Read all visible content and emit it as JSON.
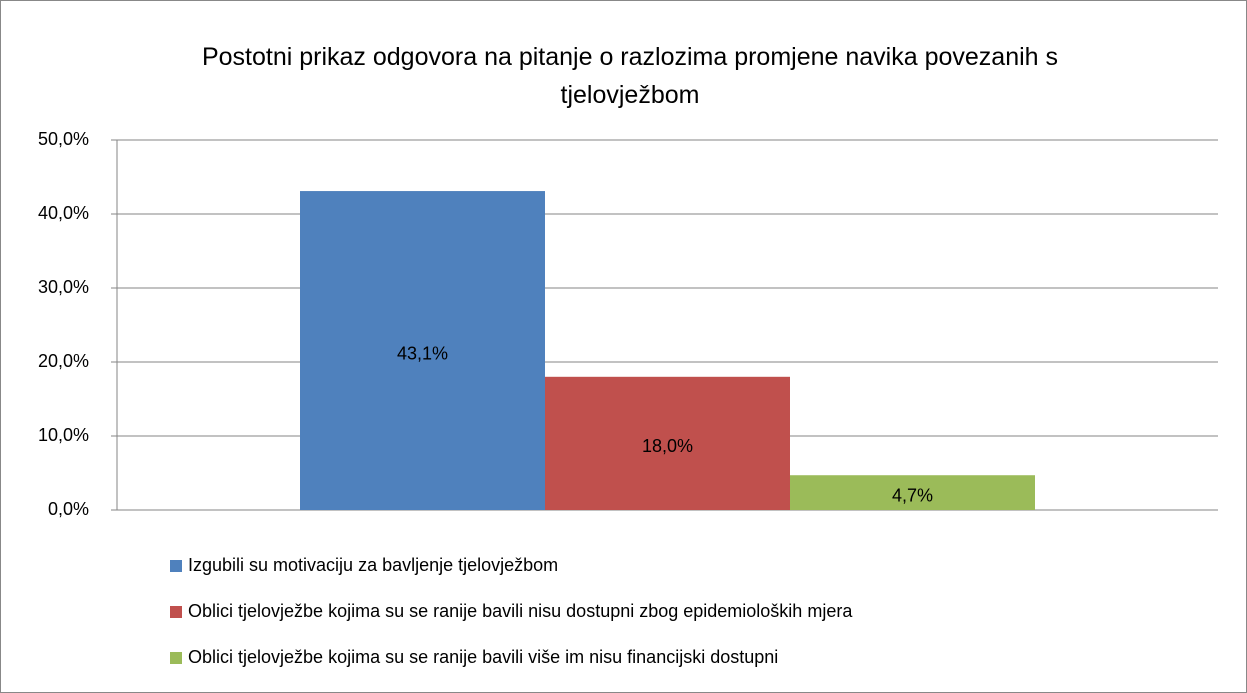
{
  "chart_data": {
    "type": "bar",
    "title": "Postotni prikaz odgovora na pitanje o razlozima promjene navika povezanih s tjelovježbom",
    "categories": [
      null
    ],
    "series": [
      {
        "name": "Izgubili su motivaciju za bavljenje tjelovježbom",
        "color": "#4f81bd",
        "values": [
          43.1
        ],
        "value_labels": [
          "43,1%"
        ]
      },
      {
        "name": "Oblici tjelovježbe kojima su se ranije bavili nisu dostupni zbog epidemioloških mjera",
        "color": "#c0504d",
        "values": [
          18.0
        ],
        "value_labels": [
          "18,0%"
        ]
      },
      {
        "name": "Oblici tjelovježbe kojima su se ranije bavili više im nisu financijski dostupni",
        "color": "#9bbb59",
        "values": [
          4.7
        ],
        "value_labels": [
          "4,7%"
        ]
      }
    ],
    "ylim": [
      0,
      50
    ],
    "yticks": [
      {
        "value": 0,
        "label": "0,0%"
      },
      {
        "value": 10,
        "label": "10,0%"
      },
      {
        "value": 20,
        "label": "20,0%"
      },
      {
        "value": 30,
        "label": "30,0%"
      },
      {
        "value": 40,
        "label": "40,0%"
      },
      {
        "value": 50,
        "label": "50,0%"
      }
    ],
    "grid": true,
    "legend": "bottom"
  }
}
